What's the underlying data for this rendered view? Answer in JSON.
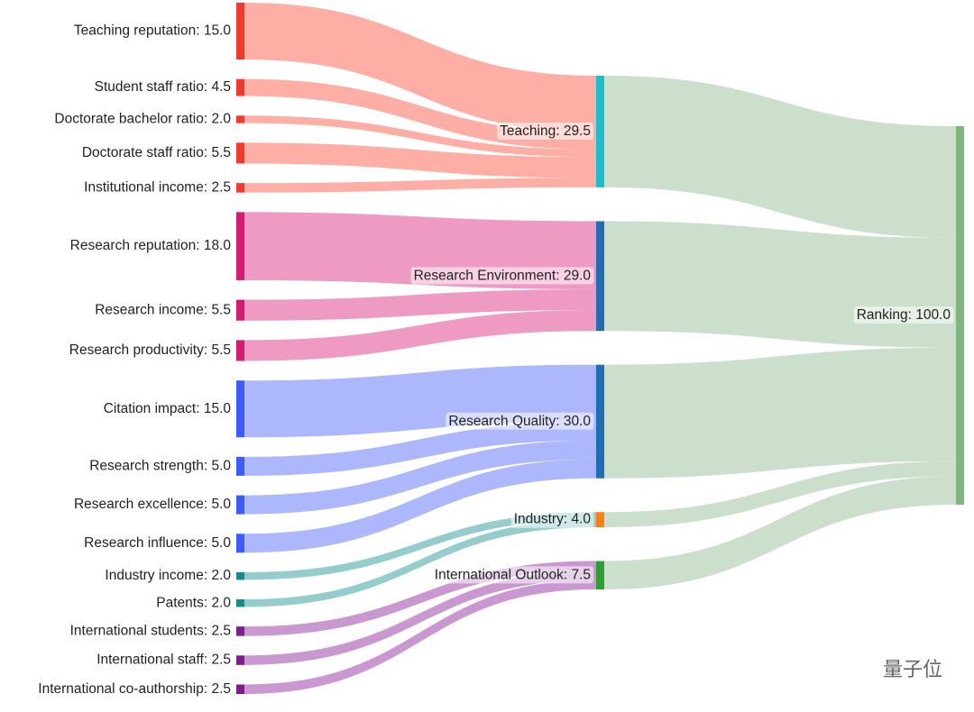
{
  "chart_data": {
    "type": "sankey",
    "nodes": [
      {
        "label": "Teaching reputation: 15.0",
        "value": 15,
        "color": "#f2392e"
      },
      {
        "label": "Student staff ratio: 4.5",
        "value": 4.5,
        "color": "#f2392e"
      },
      {
        "label": "Doctorate bachelor ratio: 2.0",
        "value": 2,
        "color": "#f2392e"
      },
      {
        "label": "Doctorate staff ratio: 5.5",
        "value": 5.5,
        "color": "#f2392e"
      },
      {
        "label": "Institutional income: 2.5",
        "value": 2.5,
        "color": "#f2392e"
      },
      {
        "label": "Research reputation: 18.0",
        "value": 18,
        "color": "#d81b72"
      },
      {
        "label": "Research income: 5.5",
        "value": 5.5,
        "color": "#d81b72"
      },
      {
        "label": "Research productivity: 5.5",
        "value": 5.5,
        "color": "#d81b72"
      },
      {
        "label": "Citation impact: 15.0",
        "value": 15,
        "color": "#3a5bff"
      },
      {
        "label": "Research strength: 5.0",
        "value": 5,
        "color": "#3a5bff"
      },
      {
        "label": "Research excellence: 5.0",
        "value": 5,
        "color": "#3a5bff"
      },
      {
        "label": "Research influence: 5.0",
        "value": 5,
        "color": "#3a5bff"
      },
      {
        "label": "Industry income: 2.0",
        "value": 2,
        "color": "#138b8b"
      },
      {
        "label": "Patents: 2.0",
        "value": 2,
        "color": "#138b8b"
      },
      {
        "label": "International students: 2.5",
        "value": 2.5,
        "color": "#7b1f8a"
      },
      {
        "label": "International staff: 2.5",
        "value": 2.5,
        "color": "#7b1f8a"
      },
      {
        "label": "International co-authorship: 2.5",
        "value": 2.5,
        "color": "#7b1f8a"
      },
      {
        "label": "Teaching: 29.5",
        "value": 29.5,
        "color": "#17becf"
      },
      {
        "label": "Research Environment: 29.0",
        "value": 29,
        "color": "#1f6db4"
      },
      {
        "label": "Research Quality: 30.0",
        "value": 30,
        "color": "#1f6db4"
      },
      {
        "label": "Industry: 4.0",
        "value": 4,
        "color": "#ff7f0e"
      },
      {
        "label": "International Outlook: 7.5",
        "value": 7.5,
        "color": "#2ca02c"
      },
      {
        "label": "Ranking: 100.0",
        "value": 100,
        "color": "#7fb77e"
      }
    ],
    "links": [
      {
        "source": 0,
        "target": 17,
        "value": 15,
        "color": "#ffaaa0"
      },
      {
        "source": 1,
        "target": 17,
        "value": 4.5,
        "color": "#ffaaa0"
      },
      {
        "source": 2,
        "target": 17,
        "value": 2,
        "color": "#ffaaa0"
      },
      {
        "source": 3,
        "target": 17,
        "value": 5.5,
        "color": "#ffaaa0"
      },
      {
        "source": 4,
        "target": 17,
        "value": 2.5,
        "color": "#ffaaa0"
      },
      {
        "source": 5,
        "target": 18,
        "value": 18,
        "color": "#ee95c0"
      },
      {
        "source": 6,
        "target": 18,
        "value": 5.5,
        "color": "#ee95c0"
      },
      {
        "source": 7,
        "target": 18,
        "value": 5.5,
        "color": "#ee95c0"
      },
      {
        "source": 8,
        "target": 19,
        "value": 15,
        "color": "#a9b3fb"
      },
      {
        "source": 9,
        "target": 19,
        "value": 5,
        "color": "#a9b3fb"
      },
      {
        "source": 10,
        "target": 19,
        "value": 5,
        "color": "#a9b3fb"
      },
      {
        "source": 11,
        "target": 19,
        "value": 5,
        "color": "#a9b3fb"
      },
      {
        "source": 12,
        "target": 20,
        "value": 2,
        "color": "#8fcaca"
      },
      {
        "source": 13,
        "target": 20,
        "value": 2,
        "color": "#8fcaca"
      },
      {
        "source": 14,
        "target": 21,
        "value": 2.5,
        "color": "#c792cf"
      },
      {
        "source": 15,
        "target": 21,
        "value": 2.5,
        "color": "#c792cf"
      },
      {
        "source": 16,
        "target": 21,
        "value": 2.5,
        "color": "#c792cf"
      },
      {
        "source": 17,
        "target": 22,
        "value": 29.5,
        "color": "#c8ddc9"
      },
      {
        "source": 18,
        "target": 22,
        "value": 29,
        "color": "#c8ddc9"
      },
      {
        "source": 19,
        "target": 22,
        "value": 30,
        "color": "#c8ddc9"
      },
      {
        "source": 20,
        "target": 22,
        "value": 4,
        "color": "#c8ddc9"
      },
      {
        "source": 21,
        "target": 22,
        "value": 7.5,
        "color": "#c8ddc9"
      }
    ],
    "watermark": "量子位"
  }
}
